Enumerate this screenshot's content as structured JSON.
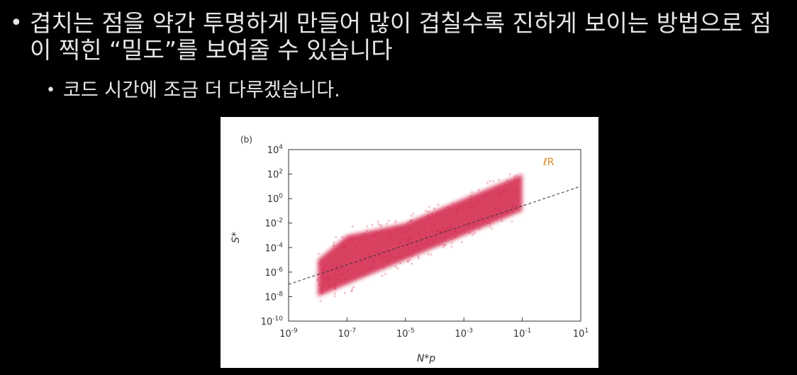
{
  "slide": {
    "bullet1": "겹치는 점을 약간 투명하게 만들어 많이 겹칠수록 진하게 보이는 방법으로 점이 찍힌 “밀도”를 보여줄 수 있습니다",
    "bullet2": "코드 시간에 조금 더 다루겠습니다."
  },
  "chart_data": {
    "type": "scatter",
    "panel_label": "(b)",
    "xlabel": "N*p",
    "ylabel": "S*",
    "x_scale": "log",
    "y_scale": "log",
    "xlim": [
      1e-09,
      10
    ],
    "ylim": [
      1e-10,
      10000.0
    ],
    "x_ticks": [
      "10-9",
      "10-7",
      "10-5",
      "10-3",
      "10-1",
      "101"
    ],
    "y_ticks": [
      "104",
      "102",
      "100",
      "10-2",
      "10-4",
      "10-6",
      "10-8",
      "10-10"
    ],
    "point_color": "#d21e46",
    "trend_line": {
      "style": "dashed",
      "from": [
        1e-09,
        1e-07
      ],
      "to": [
        10,
        10
      ]
    },
    "density_band": [
      {
        "x": 1e-08,
        "y_low": 1e-08,
        "y_high": 1e-05
      },
      {
        "x": 1e-07,
        "y_low": 1e-07,
        "y_high": 0.001
      },
      {
        "x": 1e-06,
        "y_low": 1e-06,
        "y_high": 0.003
      },
      {
        "x": 1e-05,
        "y_low": 1e-05,
        "y_high": 0.01
      },
      {
        "x": 0.0001,
        "y_low": 0.0001,
        "y_high": 0.1
      },
      {
        "x": 0.001,
        "y_low": 0.001,
        "y_high": 1
      },
      {
        "x": 0.01,
        "y_low": 0.01,
        "y_high": 10
      },
      {
        "x": 0.1,
        "y_low": 0.1,
        "y_high": 100
      }
    ],
    "legend_mark": "ℓR"
  }
}
